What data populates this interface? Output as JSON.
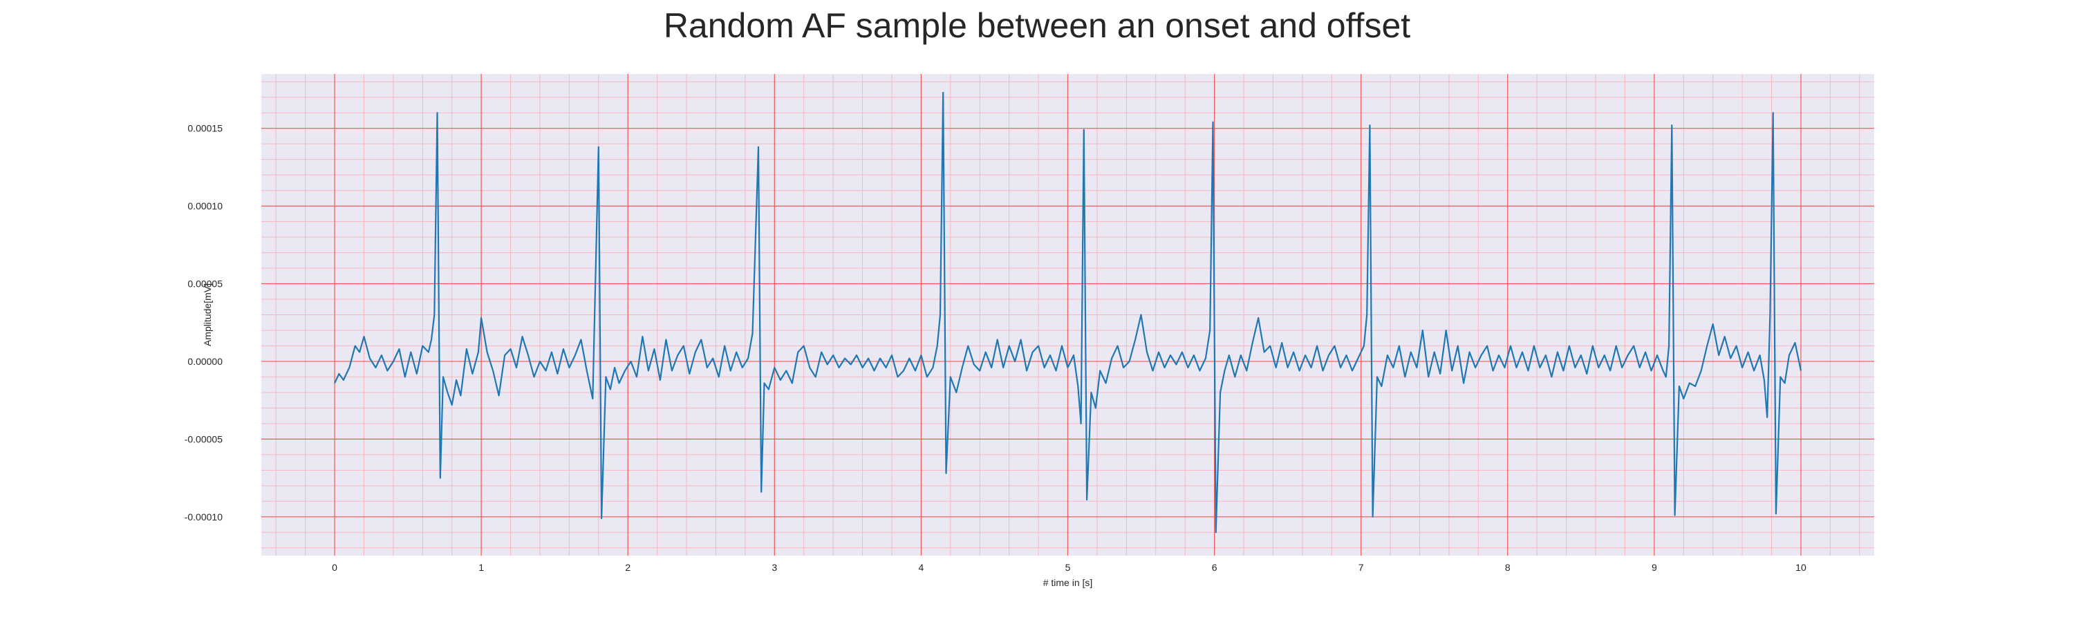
{
  "chart_data": {
    "type": "line",
    "title": "Random AF sample between an onset and offset",
    "xlabel": "# time in [s]",
    "ylabel": "Amplitude[mV]",
    "xlim": [
      -0.5,
      10.5
    ],
    "ylim": [
      -0.000125,
      0.000185
    ],
    "xticks": [
      0,
      1,
      2,
      3,
      4,
      5,
      6,
      7,
      8,
      9,
      10
    ],
    "xtick_labels": [
      "0",
      "1",
      "2",
      "3",
      "4",
      "5",
      "6",
      "7",
      "8",
      "9",
      "10"
    ],
    "yticks": [
      -0.0001,
      -5e-05,
      0,
      5e-05,
      0.0001,
      0.00015
    ],
    "ytick_labels": [
      "-0.00010",
      "-0.00005",
      "0.00000",
      "0.00005",
      "0.00010",
      "0.00015"
    ],
    "grid": true,
    "colors": {
      "background": "#eae8f2",
      "major_grid": "#f25a5a",
      "minor_grid": "#f7b7c2",
      "line": "#1f77b4"
    },
    "r_peaks": [
      {
        "t": 0.7,
        "peak": 0.00016,
        "trough": -7.5e-05
      },
      {
        "t": 1.8,
        "peak": 0.000138,
        "trough": -0.000101
      },
      {
        "t": 2.89,
        "peak": 0.000138,
        "trough": -8.4e-05
      },
      {
        "t": 4.15,
        "peak": 0.000173,
        "trough": -7.2e-05
      },
      {
        "t": 5.11,
        "peak": 0.000149,
        "trough": -8.9e-05
      },
      {
        "t": 5.99,
        "peak": 0.000154,
        "trough": -0.00011
      },
      {
        "t": 7.06,
        "peak": 0.000152,
        "trough": -0.0001
      },
      {
        "t": 9.12,
        "peak": 0.000152,
        "trough": -9.9e-05
      },
      {
        "t": 9.81,
        "peak": 0.00016,
        "trough": -9.8e-05
      }
    ],
    "series": [
      {
        "values": [
          [
            0.0,
            -1.4e-05
          ],
          [
            0.03,
            -8e-06
          ],
          [
            0.06,
            -1.2e-05
          ],
          [
            0.1,
            -4e-06
          ],
          [
            0.14,
            1e-05
          ],
          [
            0.17,
            6e-06
          ],
          [
            0.2,
            1.6e-05
          ],
          [
            0.24,
            2e-06
          ],
          [
            0.28,
            -4e-06
          ],
          [
            0.32,
            4e-06
          ],
          [
            0.36,
            -6e-06
          ],
          [
            0.4,
            0.0
          ],
          [
            0.44,
            8e-06
          ],
          [
            0.48,
            -1e-05
          ],
          [
            0.52,
            6e-06
          ],
          [
            0.56,
            -8e-06
          ],
          [
            0.6,
            1e-05
          ],
          [
            0.64,
            6e-06
          ],
          [
            0.66,
            1.4e-05
          ],
          [
            0.68,
            3e-05
          ],
          [
            0.7,
            0.00016
          ],
          [
            0.72,
            -7.5e-05
          ],
          [
            0.74,
            -1e-05
          ],
          [
            0.77,
            -2e-05
          ],
          [
            0.8,
            -2.8e-05
          ],
          [
            0.83,
            -1.2e-05
          ],
          [
            0.86,
            -2.2e-05
          ],
          [
            0.9,
            8e-06
          ],
          [
            0.94,
            -8e-06
          ],
          [
            0.98,
            6e-06
          ],
          [
            1.0,
            2.8e-05
          ],
          [
            1.04,
            6e-06
          ],
          [
            1.08,
            -6e-06
          ],
          [
            1.12,
            -2.2e-05
          ],
          [
            1.16,
            4e-06
          ],
          [
            1.2,
            8e-06
          ],
          [
            1.24,
            -4e-06
          ],
          [
            1.28,
            1.6e-05
          ],
          [
            1.32,
            4e-06
          ],
          [
            1.36,
            -1e-05
          ],
          [
            1.4,
            0.0
          ],
          [
            1.44,
            -6e-06
          ],
          [
            1.48,
            6e-06
          ],
          [
            1.52,
            -8e-06
          ],
          [
            1.56,
            8e-06
          ],
          [
            1.6,
            -4e-06
          ],
          [
            1.64,
            4e-06
          ],
          [
            1.68,
            1.4e-05
          ],
          [
            1.72,
            -6e-06
          ],
          [
            1.76,
            -2.4e-05
          ],
          [
            1.8,
            0.000138
          ],
          [
            1.82,
            -0.000101
          ],
          [
            1.85,
            -1e-05
          ],
          [
            1.88,
            -1.8e-05
          ],
          [
            1.91,
            -4e-06
          ],
          [
            1.94,
            -1.4e-05
          ],
          [
            1.98,
            -6e-06
          ],
          [
            2.02,
            0.0
          ],
          [
            2.06,
            -1e-05
          ],
          [
            2.1,
            1.6e-05
          ],
          [
            2.14,
            -6e-06
          ],
          [
            2.18,
            8e-06
          ],
          [
            2.22,
            -1.2e-05
          ],
          [
            2.26,
            1.4e-05
          ],
          [
            2.3,
            -6e-06
          ],
          [
            2.34,
            4e-06
          ],
          [
            2.38,
            1e-05
          ],
          [
            2.42,
            -8e-06
          ],
          [
            2.46,
            6e-06
          ],
          [
            2.5,
            1.4e-05
          ],
          [
            2.54,
            -4e-06
          ],
          [
            2.58,
            2e-06
          ],
          [
            2.62,
            -1e-05
          ],
          [
            2.66,
            1e-05
          ],
          [
            2.7,
            -6e-06
          ],
          [
            2.74,
            6e-06
          ],
          [
            2.78,
            -4e-06
          ],
          [
            2.82,
            2e-06
          ],
          [
            2.85,
            1.8e-05
          ],
          [
            2.89,
            0.000138
          ],
          [
            2.91,
            -8.4e-05
          ],
          [
            2.93,
            -1.4e-05
          ],
          [
            2.96,
            -1.8e-05
          ],
          [
            3.0,
            -4e-06
          ],
          [
            3.04,
            -1.2e-05
          ],
          [
            3.08,
            -6e-06
          ],
          [
            3.12,
            -1.4e-05
          ],
          [
            3.16,
            6e-06
          ],
          [
            3.2,
            1e-05
          ],
          [
            3.24,
            -4e-06
          ],
          [
            3.28,
            -1e-05
          ],
          [
            3.32,
            6e-06
          ],
          [
            3.36,
            -2e-06
          ],
          [
            3.4,
            4e-06
          ],
          [
            3.44,
            -4e-06
          ],
          [
            3.48,
            2e-06
          ],
          [
            3.52,
            -2e-06
          ],
          [
            3.56,
            4e-06
          ],
          [
            3.6,
            -4e-06
          ],
          [
            3.64,
            2e-06
          ],
          [
            3.68,
            -6e-06
          ],
          [
            3.72,
            2e-06
          ],
          [
            3.76,
            -4e-06
          ],
          [
            3.8,
            4e-06
          ],
          [
            3.84,
            -1e-05
          ],
          [
            3.88,
            -6e-06
          ],
          [
            3.92,
            2e-06
          ],
          [
            3.96,
            -6e-06
          ],
          [
            4.0,
            4e-06
          ],
          [
            4.04,
            -1e-05
          ],
          [
            4.08,
            -4e-06
          ],
          [
            4.11,
            1e-05
          ],
          [
            4.13,
            3e-05
          ],
          [
            4.15,
            0.000173
          ],
          [
            4.17,
            -7.2e-05
          ],
          [
            4.2,
            -1e-05
          ],
          [
            4.24,
            -2e-05
          ],
          [
            4.28,
            -4e-06
          ],
          [
            4.32,
            1e-05
          ],
          [
            4.36,
            -2e-06
          ],
          [
            4.4,
            -6e-06
          ],
          [
            4.44,
            6e-06
          ],
          [
            4.48,
            -4e-06
          ],
          [
            4.52,
            1.4e-05
          ],
          [
            4.56,
            -4e-06
          ],
          [
            4.6,
            1e-05
          ],
          [
            4.64,
            0.0
          ],
          [
            4.68,
            1.4e-05
          ],
          [
            4.72,
            -6e-06
          ],
          [
            4.76,
            6e-06
          ],
          [
            4.8,
            1e-05
          ],
          [
            4.84,
            -4e-06
          ],
          [
            4.88,
            4e-06
          ],
          [
            4.92,
            -6e-06
          ],
          [
            4.96,
            1e-05
          ],
          [
            5.0,
            -4e-06
          ],
          [
            5.04,
            4e-06
          ],
          [
            5.07,
            -1.6e-05
          ],
          [
            5.09,
            -4e-05
          ],
          [
            5.11,
            0.000149
          ],
          [
            5.13,
            -8.9e-05
          ],
          [
            5.16,
            -2e-05
          ],
          [
            5.19,
            -3e-05
          ],
          [
            5.22,
            -6e-06
          ],
          [
            5.26,
            -1.4e-05
          ],
          [
            5.3,
            2e-06
          ],
          [
            5.34,
            1e-05
          ],
          [
            5.38,
            -4e-06
          ],
          [
            5.42,
            0.0
          ],
          [
            5.46,
            1.4e-05
          ],
          [
            5.5,
            3e-05
          ],
          [
            5.54,
            6e-06
          ],
          [
            5.58,
            -6e-06
          ],
          [
            5.62,
            6e-06
          ],
          [
            5.66,
            -4e-06
          ],
          [
            5.7,
            4e-06
          ],
          [
            5.74,
            -2e-06
          ],
          [
            5.78,
            6e-06
          ],
          [
            5.82,
            -4e-06
          ],
          [
            5.86,
            4e-06
          ],
          [
            5.9,
            -6e-06
          ],
          [
            5.94,
            2e-06
          ],
          [
            5.97,
            2e-05
          ],
          [
            5.99,
            0.000154
          ],
          [
            6.01,
            -0.00011
          ],
          [
            6.04,
            -2e-05
          ],
          [
            6.07,
            -6e-06
          ],
          [
            6.1,
            4e-06
          ],
          [
            6.14,
            -1e-05
          ],
          [
            6.18,
            4e-06
          ],
          [
            6.22,
            -6e-06
          ],
          [
            6.26,
            1.2e-05
          ],
          [
            6.3,
            2.8e-05
          ],
          [
            6.34,
            6e-06
          ],
          [
            6.38,
            1e-05
          ],
          [
            6.42,
            -4e-06
          ],
          [
            6.46,
            1.2e-05
          ],
          [
            6.5,
            -4e-06
          ],
          [
            6.54,
            6e-06
          ],
          [
            6.58,
            -6e-06
          ],
          [
            6.62,
            4e-06
          ],
          [
            6.66,
            -4e-06
          ],
          [
            6.7,
            1e-05
          ],
          [
            6.74,
            -6e-06
          ],
          [
            6.78,
            4e-06
          ],
          [
            6.82,
            1e-05
          ],
          [
            6.86,
            -4e-06
          ],
          [
            6.9,
            4e-06
          ],
          [
            6.94,
            -6e-06
          ],
          [
            6.98,
            2e-06
          ],
          [
            7.02,
            1e-05
          ],
          [
            7.04,
            3e-05
          ],
          [
            7.06,
            0.000152
          ],
          [
            7.08,
            -0.0001
          ],
          [
            7.11,
            -1e-05
          ],
          [
            7.14,
            -1.6e-05
          ],
          [
            7.18,
            4e-06
          ],
          [
            7.22,
            -4e-06
          ],
          [
            7.26,
            1e-05
          ],
          [
            7.3,
            -1e-05
          ],
          [
            7.34,
            6e-06
          ],
          [
            7.38,
            -4e-06
          ],
          [
            7.42,
            2e-05
          ],
          [
            7.46,
            -1e-05
          ],
          [
            7.5,
            6e-06
          ],
          [
            7.54,
            -8e-06
          ],
          [
            7.58,
            2e-05
          ],
          [
            7.62,
            -6e-06
          ],
          [
            7.66,
            1e-05
          ],
          [
            7.7,
            -1.4e-05
          ],
          [
            7.74,
            6e-06
          ],
          [
            7.78,
            -4e-06
          ],
          [
            7.82,
            4e-06
          ],
          [
            7.86,
            1e-05
          ],
          [
            7.9,
            -6e-06
          ],
          [
            7.94,
            4e-06
          ],
          [
            7.98,
            -4e-06
          ],
          [
            8.02,
            1e-05
          ],
          [
            8.06,
            -4e-06
          ],
          [
            8.1,
            6e-06
          ],
          [
            8.14,
            -6e-06
          ],
          [
            8.18,
            1e-05
          ],
          [
            8.22,
            -4e-06
          ],
          [
            8.26,
            4e-06
          ],
          [
            8.3,
            -1e-05
          ],
          [
            8.34,
            6e-06
          ],
          [
            8.38,
            -6e-06
          ],
          [
            8.42,
            1e-05
          ],
          [
            8.46,
            -4e-06
          ],
          [
            8.5,
            4e-06
          ],
          [
            8.54,
            -8e-06
          ],
          [
            8.58,
            1e-05
          ],
          [
            8.62,
            -4e-06
          ],
          [
            8.66,
            4e-06
          ],
          [
            8.7,
            -6e-06
          ],
          [
            8.74,
            1e-05
          ],
          [
            8.78,
            -4e-06
          ],
          [
            8.82,
            4e-06
          ],
          [
            8.86,
            1e-05
          ],
          [
            8.9,
            -4e-06
          ],
          [
            8.94,
            6e-06
          ],
          [
            8.98,
            -6e-06
          ],
          [
            9.02,
            4e-06
          ],
          [
            9.06,
            -6e-06
          ],
          [
            9.08,
            -1e-05
          ],
          [
            9.1,
            1e-05
          ],
          [
            9.12,
            0.000152
          ],
          [
            9.14,
            -9.9e-05
          ],
          [
            9.17,
            -1.6e-05
          ],
          [
            9.2,
            -2.4e-05
          ],
          [
            9.24,
            -1.4e-05
          ],
          [
            9.28,
            -1.6e-05
          ],
          [
            9.32,
            -6e-06
          ],
          [
            9.36,
            1e-05
          ],
          [
            9.4,
            2.4e-05
          ],
          [
            9.44,
            4e-06
          ],
          [
            9.48,
            1.6e-05
          ],
          [
            9.52,
            2e-06
          ],
          [
            9.56,
            1e-05
          ],
          [
            9.6,
            -4e-06
          ],
          [
            9.64,
            6e-06
          ],
          [
            9.68,
            -6e-06
          ],
          [
            9.72,
            4e-06
          ],
          [
            9.75,
            -1.2e-05
          ],
          [
            9.77,
            -3.6e-05
          ],
          [
            9.79,
            3e-05
          ],
          [
            9.81,
            0.00016
          ],
          [
            9.83,
            -9.8e-05
          ],
          [
            9.86,
            -1e-05
          ],
          [
            9.89,
            -1.4e-05
          ],
          [
            9.92,
            4e-06
          ],
          [
            9.96,
            1.2e-05
          ],
          [
            10.0,
            -6e-06
          ]
        ]
      }
    ]
  }
}
